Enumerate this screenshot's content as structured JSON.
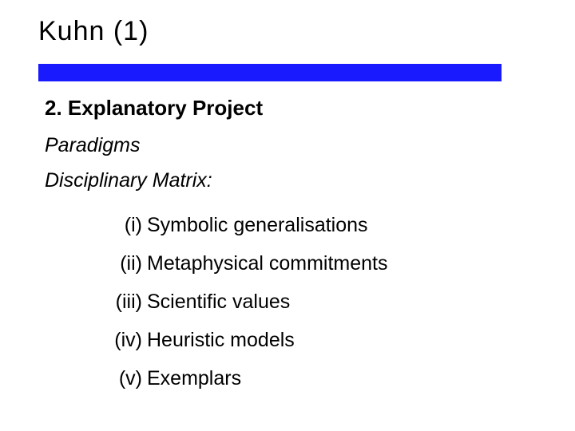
{
  "title": "Kuhn (1)",
  "rule_color": "#1a1aff",
  "section_heading": "2.  Explanatory Project",
  "subheading1": "Paradigms",
  "subheading2": "Disciplinary Matrix:",
  "items": [
    {
      "num": "(i)",
      "text": "Symbolic generalisations"
    },
    {
      "num": "(ii)",
      "text": "Metaphysical commitments"
    },
    {
      "num": "(iii)",
      "text": "Scientific values"
    },
    {
      "num": "(iv)",
      "text": "Heuristic models"
    },
    {
      "num": "(v)",
      "text": "Exemplars"
    }
  ],
  "fonts": {
    "title_size_pt": 26,
    "body_size_pt": 19,
    "heading_weight": "bold",
    "subheading_style": "italic"
  },
  "colors": {
    "background": "#ffffff",
    "text": "#000000"
  }
}
